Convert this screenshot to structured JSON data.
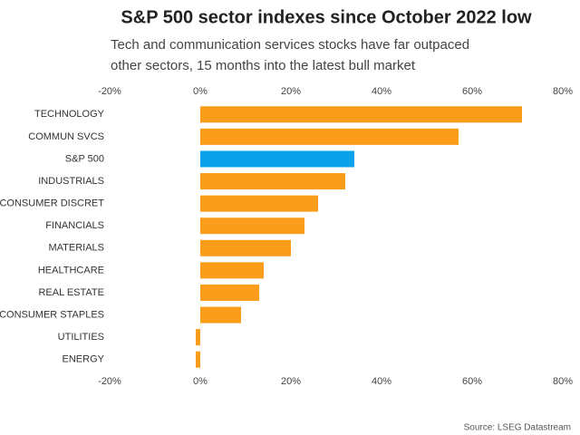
{
  "chart_data": {
    "type": "hbar",
    "title": "S&P 500 sector indexes since October 2022 low",
    "subtitle": [
      "Tech and communication services stocks have far outpaced",
      "other sectors, 15 months into the latest bull market"
    ],
    "source": "Source: LSEG Datastream",
    "categories": [
      "TECHNOLOGY",
      "COMMUN SVCS",
      "S&P 500",
      "INDUSTRIALS",
      "CONSUMER DISCRET",
      "FINANCIALS",
      "MATERIALS",
      "HEALTHCARE",
      "REAL ESTATE",
      "CONSUMER STAPLES",
      "UTILITIES",
      "ENERGY"
    ],
    "values": [
      71,
      57,
      34,
      32,
      26,
      23,
      20,
      14,
      13,
      9,
      -1,
      -1
    ],
    "colors": [
      "#fb9c1b",
      "#fb9c1b",
      "#0aa2ea",
      "#fb9c1b",
      "#fb9c1b",
      "#fb9c1b",
      "#fb9c1b",
      "#fb9c1b",
      "#fb9c1b",
      "#fb9c1b",
      "#fb9c1b",
      "#fb9c1b"
    ],
    "xlim": [
      -20,
      80
    ],
    "xticks": [
      {
        "value": -20,
        "label": "-20%"
      },
      {
        "value": 0,
        "label": "0%"
      },
      {
        "value": 20,
        "label": "20%"
      },
      {
        "value": 40,
        "label": "40%"
      },
      {
        "value": 60,
        "label": "60%"
      },
      {
        "value": 80,
        "label": "80%"
      }
    ],
    "grid": false
  }
}
